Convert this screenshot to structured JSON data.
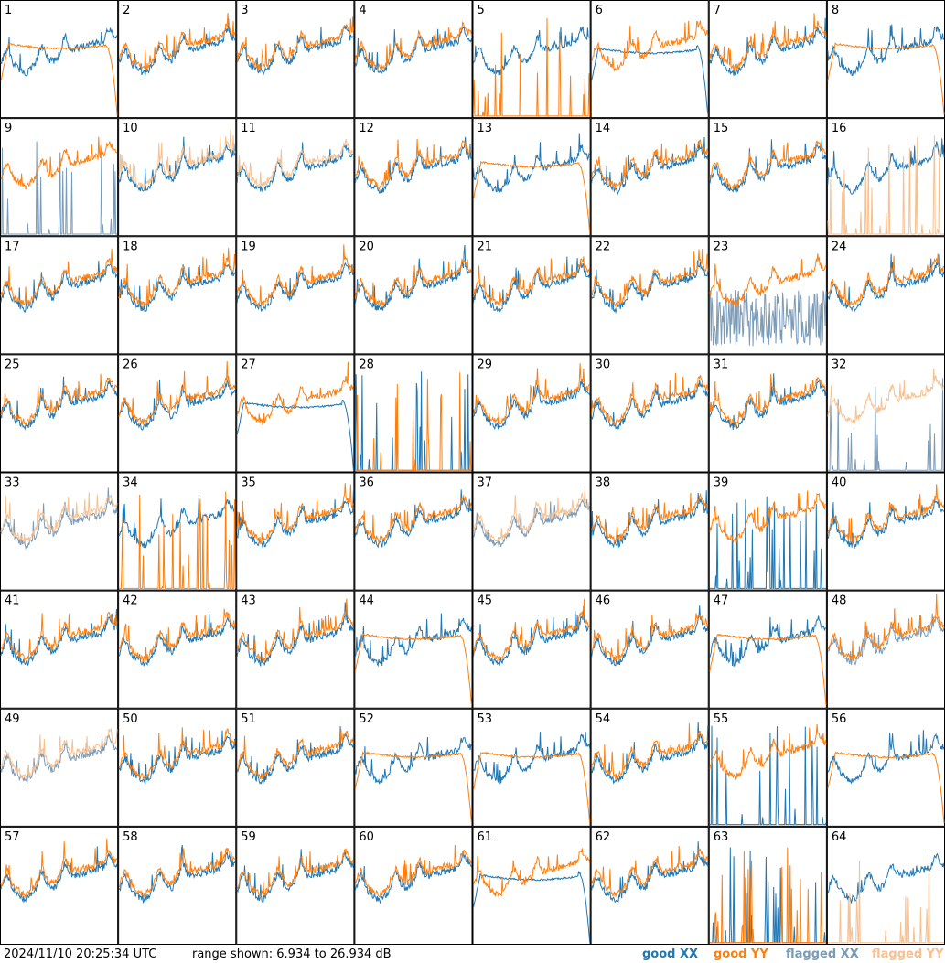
{
  "timestamp": "2024/11/10 20:25:34 UTC",
  "range_text": "range shown: 6.934 to 26.934 dB",
  "legend": [
    {
      "label": "good XX",
      "color": "#1f77b4"
    },
    {
      "label": "good YY",
      "color": "#ff7f0e"
    },
    {
      "label": "flagged XX",
      "color": "#7a9bb8"
    },
    {
      "label": "flagged YY",
      "color": "#f7c08f"
    }
  ],
  "chart_data": {
    "type": "line",
    "layout": "8x8 small multiples of per-antenna spectra",
    "ylim": [
      6.934,
      26.934
    ],
    "y_unit": "dB",
    "panels": [
      {
        "id": "1",
        "xx": "good",
        "yy": "good",
        "xx_shape": "normal",
        "yy_shape": "rolloff"
      },
      {
        "id": "2",
        "xx": "good",
        "yy": "good",
        "xx_shape": "normal",
        "yy_shape": "normal"
      },
      {
        "id": "3",
        "xx": "good",
        "yy": "good",
        "xx_shape": "normal",
        "yy_shape": "normal"
      },
      {
        "id": "4",
        "xx": "good",
        "yy": "good",
        "xx_shape": "normal",
        "yy_shape": "normal"
      },
      {
        "id": "5",
        "xx": "good",
        "yy": "good",
        "xx_shape": "normal",
        "yy_shape": "spikes"
      },
      {
        "id": "6",
        "xx": "good",
        "yy": "good",
        "xx_shape": "rolloff",
        "yy_shape": "normal"
      },
      {
        "id": "7",
        "xx": "good",
        "yy": "good",
        "xx_shape": "normal",
        "yy_shape": "normal"
      },
      {
        "id": "8",
        "xx": "good",
        "yy": "good",
        "xx_shape": "normal",
        "yy_shape": "rolloff"
      },
      {
        "id": "9",
        "xx": "flagged",
        "yy": "good",
        "xx_shape": "spikes",
        "yy_shape": "normal"
      },
      {
        "id": "10",
        "xx": "good",
        "yy": "flagged",
        "xx_shape": "normal",
        "yy_shape": "normal"
      },
      {
        "id": "11",
        "xx": "good",
        "yy": "flagged",
        "xx_shape": "normal",
        "yy_shape": "normal"
      },
      {
        "id": "12",
        "xx": "good",
        "yy": "good",
        "xx_shape": "normal",
        "yy_shape": "normal"
      },
      {
        "id": "13",
        "xx": "good",
        "yy": "good",
        "xx_shape": "normal",
        "yy_shape": "rolloff"
      },
      {
        "id": "14",
        "xx": "good",
        "yy": "good",
        "xx_shape": "normal",
        "yy_shape": "normal"
      },
      {
        "id": "15",
        "xx": "good",
        "yy": "good",
        "xx_shape": "normal",
        "yy_shape": "normal"
      },
      {
        "id": "16",
        "xx": "good",
        "yy": "flagged",
        "xx_shape": "normal",
        "yy_shape": "spikes"
      },
      {
        "id": "17",
        "xx": "good",
        "yy": "good",
        "xx_shape": "normal",
        "yy_shape": "normal"
      },
      {
        "id": "18",
        "xx": "good",
        "yy": "good",
        "xx_shape": "normal",
        "yy_shape": "normal"
      },
      {
        "id": "19",
        "xx": "good",
        "yy": "good",
        "xx_shape": "normal",
        "yy_shape": "normal"
      },
      {
        "id": "20",
        "xx": "good",
        "yy": "good",
        "xx_shape": "normal",
        "yy_shape": "normal"
      },
      {
        "id": "21",
        "xx": "good",
        "yy": "good",
        "xx_shape": "normal",
        "yy_shape": "normal"
      },
      {
        "id": "22",
        "xx": "good",
        "yy": "good",
        "xx_shape": "normal",
        "yy_shape": "normal"
      },
      {
        "id": "23",
        "xx": "flagged",
        "yy": "good",
        "xx_shape": "noisy",
        "yy_shape": "normal"
      },
      {
        "id": "24",
        "xx": "good",
        "yy": "good",
        "xx_shape": "normal",
        "yy_shape": "normal"
      },
      {
        "id": "25",
        "xx": "good",
        "yy": "good",
        "xx_shape": "normal",
        "yy_shape": "normal"
      },
      {
        "id": "26",
        "xx": "good",
        "yy": "good",
        "xx_shape": "normal",
        "yy_shape": "normal"
      },
      {
        "id": "27",
        "xx": "good",
        "yy": "good",
        "xx_shape": "rolloff",
        "yy_shape": "normal"
      },
      {
        "id": "28",
        "xx": "good",
        "yy": "good",
        "xx_shape": "spikes",
        "yy_shape": "spikes"
      },
      {
        "id": "29",
        "xx": "good",
        "yy": "good",
        "xx_shape": "normal",
        "yy_shape": "normal"
      },
      {
        "id": "30",
        "xx": "good",
        "yy": "good",
        "xx_shape": "normal",
        "yy_shape": "normal"
      },
      {
        "id": "31",
        "xx": "good",
        "yy": "good",
        "xx_shape": "normal",
        "yy_shape": "normal"
      },
      {
        "id": "32",
        "xx": "flagged",
        "yy": "flagged",
        "xx_shape": "spikes",
        "yy_shape": "normal"
      },
      {
        "id": "33",
        "xx": "flagged",
        "yy": "flagged",
        "xx_shape": "normal",
        "yy_shape": "normal"
      },
      {
        "id": "34",
        "xx": "good",
        "yy": "good",
        "xx_shape": "normal",
        "yy_shape": "spikes"
      },
      {
        "id": "35",
        "xx": "good",
        "yy": "good",
        "xx_shape": "normal",
        "yy_shape": "normal"
      },
      {
        "id": "36",
        "xx": "good",
        "yy": "good",
        "xx_shape": "normal",
        "yy_shape": "normal"
      },
      {
        "id": "37",
        "xx": "flagged",
        "yy": "flagged",
        "xx_shape": "normal",
        "yy_shape": "normal"
      },
      {
        "id": "38",
        "xx": "good",
        "yy": "good",
        "xx_shape": "normal",
        "yy_shape": "normal"
      },
      {
        "id": "39",
        "xx": "good",
        "yy": "good",
        "xx_shape": "spikes",
        "yy_shape": "normal"
      },
      {
        "id": "40",
        "xx": "good",
        "yy": "good",
        "xx_shape": "normal",
        "yy_shape": "normal"
      },
      {
        "id": "41",
        "xx": "good",
        "yy": "good",
        "xx_shape": "normal",
        "yy_shape": "normal"
      },
      {
        "id": "42",
        "xx": "good",
        "yy": "good",
        "xx_shape": "normal",
        "yy_shape": "normal"
      },
      {
        "id": "43",
        "xx": "good",
        "yy": "good",
        "xx_shape": "normal",
        "yy_shape": "normal"
      },
      {
        "id": "44",
        "xx": "good",
        "yy": "good",
        "xx_shape": "normal",
        "yy_shape": "rolloff"
      },
      {
        "id": "45",
        "xx": "good",
        "yy": "good",
        "xx_shape": "normal",
        "yy_shape": "normal"
      },
      {
        "id": "46",
        "xx": "good",
        "yy": "good",
        "xx_shape": "normal",
        "yy_shape": "normal"
      },
      {
        "id": "47",
        "xx": "good",
        "yy": "good",
        "xx_shape": "normal",
        "yy_shape": "rolloff"
      },
      {
        "id": "48",
        "xx": "flagged",
        "yy": "good",
        "xx_shape": "normal",
        "yy_shape": "normal"
      },
      {
        "id": "49",
        "xx": "flagged",
        "yy": "flagged",
        "xx_shape": "normal",
        "yy_shape": "normal"
      },
      {
        "id": "50",
        "xx": "good",
        "yy": "good",
        "xx_shape": "normal",
        "yy_shape": "normal"
      },
      {
        "id": "51",
        "xx": "good",
        "yy": "good",
        "xx_shape": "normal",
        "yy_shape": "normal"
      },
      {
        "id": "52",
        "xx": "good",
        "yy": "good",
        "xx_shape": "normal",
        "yy_shape": "rolloff"
      },
      {
        "id": "53",
        "xx": "good",
        "yy": "good",
        "xx_shape": "normal",
        "yy_shape": "rolloff"
      },
      {
        "id": "54",
        "xx": "good",
        "yy": "good",
        "xx_shape": "normal",
        "yy_shape": "normal"
      },
      {
        "id": "55",
        "xx": "good",
        "yy": "good",
        "xx_shape": "spikes",
        "yy_shape": "normal"
      },
      {
        "id": "56",
        "xx": "good",
        "yy": "good",
        "xx_shape": "normal",
        "yy_shape": "rolloff"
      },
      {
        "id": "57",
        "xx": "good",
        "yy": "good",
        "xx_shape": "normal",
        "yy_shape": "normal"
      },
      {
        "id": "58",
        "xx": "good",
        "yy": "good",
        "xx_shape": "normal",
        "yy_shape": "normal"
      },
      {
        "id": "59",
        "xx": "good",
        "yy": "good",
        "xx_shape": "normal",
        "yy_shape": "normal"
      },
      {
        "id": "60",
        "xx": "good",
        "yy": "good",
        "xx_shape": "normal",
        "yy_shape": "normal"
      },
      {
        "id": "61",
        "xx": "good",
        "yy": "good",
        "xx_shape": "rolloff",
        "yy_shape": "normal"
      },
      {
        "id": "62",
        "xx": "good",
        "yy": "good",
        "xx_shape": "normal",
        "yy_shape": "normal"
      },
      {
        "id": "63",
        "xx": "good",
        "yy": "good",
        "xx_shape": "spikes",
        "yy_shape": "spikes"
      },
      {
        "id": "64",
        "xx": "good",
        "yy": "flagged",
        "xx_shape": "normal",
        "yy_shape": "spikes"
      }
    ]
  }
}
